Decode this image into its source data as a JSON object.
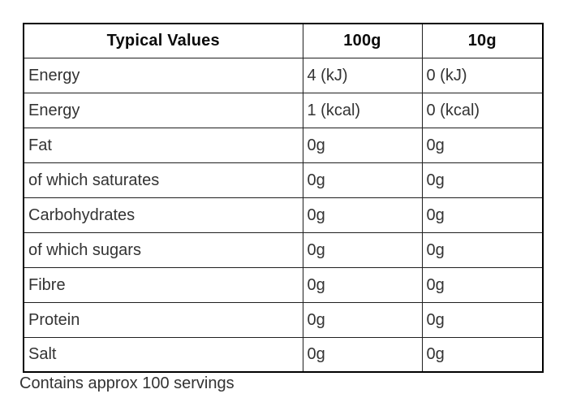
{
  "table": {
    "headers": [
      "Typical Values",
      "100g",
      "10g"
    ],
    "rows": [
      {
        "label": "Energy",
        "per100g": "4 (kJ)",
        "per10g": "0 (kJ)"
      },
      {
        "label": "Energy",
        "per100g": "1 (kcal)",
        "per10g": "0 (kcal)"
      },
      {
        "label": "Fat",
        "per100g": "0g",
        "per10g": "0g"
      },
      {
        "label": "of which saturates",
        "per100g": "0g",
        "per10g": "0g"
      },
      {
        "label": "Carbohydrates",
        "per100g": "0g",
        "per10g": "0g"
      },
      {
        "label": "of which sugars",
        "per100g": "0g",
        "per10g": "0g"
      },
      {
        "label": "Fibre",
        "per100g": "0g",
        "per10g": "0g"
      },
      {
        "label": "Protein",
        "per100g": "0g",
        "per10g": "0g"
      },
      {
        "label": "Salt",
        "per100g": "0g",
        "per10g": "0g"
      }
    ]
  },
  "footer": {
    "note": "Contains approx 100 servings"
  },
  "colors": {
    "background": "#ffffff",
    "outer_border": "#000000",
    "inner_border": "#1f1f1f",
    "header_text": "#0b0b0b",
    "body_text": "#333333"
  },
  "chart_data": {
    "type": "table",
    "title": "Typical Values",
    "columns": [
      "Typical Values",
      "100g",
      "10g"
    ],
    "rows": [
      [
        "Energy",
        "4 (kJ)",
        "0 (kJ)"
      ],
      [
        "Energy",
        "1 (kcal)",
        "0 (kcal)"
      ],
      [
        "Fat",
        "0g",
        "0g"
      ],
      [
        "of which saturates",
        "0g",
        "0g"
      ],
      [
        "Carbohydrates",
        "0g",
        "0g"
      ],
      [
        "of which sugars",
        "0g",
        "0g"
      ],
      [
        "Fibre",
        "0g",
        "0g"
      ],
      [
        "Protein",
        "0g",
        "0g"
      ],
      [
        "Salt",
        "0g",
        "0g"
      ]
    ],
    "annotations": [
      "Contains approx 100 servings"
    ]
  }
}
